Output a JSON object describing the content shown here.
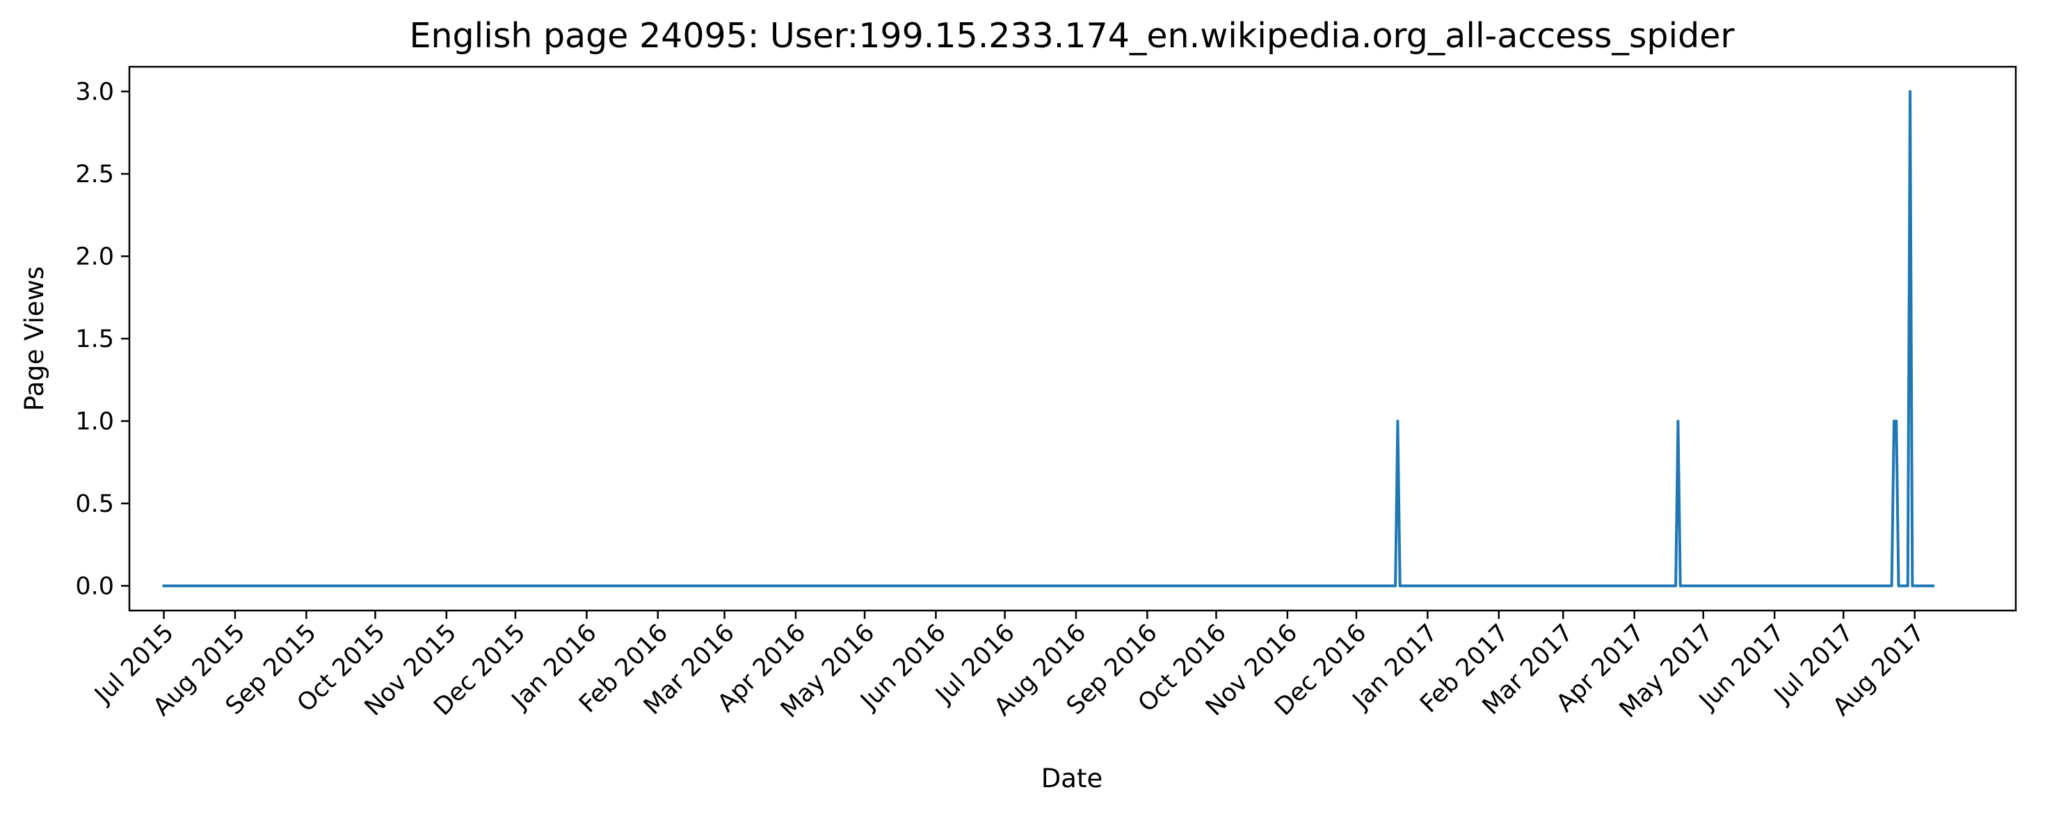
{
  "chart_data": {
    "type": "line",
    "title": "English page 24095: User:199.15.233.174_en.wikipedia.org_all-access_spider",
    "xlabel": "Date",
    "ylabel": "Page Views",
    "x_range": [
      "2015-06-16",
      "2017-09-14"
    ],
    "ylim": [
      -0.15,
      3.15
    ],
    "x_ticks": [
      {
        "date": "2015-07-01",
        "label": "Jul 2015"
      },
      {
        "date": "2015-08-01",
        "label": "Aug 2015"
      },
      {
        "date": "2015-09-01",
        "label": "Sep 2015"
      },
      {
        "date": "2015-10-01",
        "label": "Oct 2015"
      },
      {
        "date": "2015-11-01",
        "label": "Nov 2015"
      },
      {
        "date": "2015-12-01",
        "label": "Dec 2015"
      },
      {
        "date": "2016-01-01",
        "label": "Jan 2016"
      },
      {
        "date": "2016-02-01",
        "label": "Feb 2016"
      },
      {
        "date": "2016-03-01",
        "label": "Mar 2016"
      },
      {
        "date": "2016-04-01",
        "label": "Apr 2016"
      },
      {
        "date": "2016-05-01",
        "label": "May 2016"
      },
      {
        "date": "2016-06-01",
        "label": "Jun 2016"
      },
      {
        "date": "2016-07-01",
        "label": "Jul 2016"
      },
      {
        "date": "2016-08-01",
        "label": "Aug 2016"
      },
      {
        "date": "2016-09-01",
        "label": "Sep 2016"
      },
      {
        "date": "2016-10-01",
        "label": "Oct 2016"
      },
      {
        "date": "2016-11-01",
        "label": "Nov 2016"
      },
      {
        "date": "2016-12-01",
        "label": "Dec 2016"
      },
      {
        "date": "2017-01-01",
        "label": "Jan 2017"
      },
      {
        "date": "2017-02-01",
        "label": "Feb 2017"
      },
      {
        "date": "2017-03-01",
        "label": "Mar 2017"
      },
      {
        "date": "2017-04-01",
        "label": "Apr 2017"
      },
      {
        "date": "2017-05-01",
        "label": "May 2017"
      },
      {
        "date": "2017-06-01",
        "label": "Jun 2017"
      },
      {
        "date": "2017-07-01",
        "label": "Jul 2017"
      },
      {
        "date": "2017-08-01",
        "label": "Aug 2017"
      }
    ],
    "y_ticks": [
      {
        "value": 0.0,
        "label": "0.0"
      },
      {
        "value": 0.5,
        "label": "0.5"
      },
      {
        "value": 1.0,
        "label": "1.0"
      },
      {
        "value": 1.5,
        "label": "1.5"
      },
      {
        "value": 2.0,
        "label": "2.0"
      },
      {
        "value": 2.5,
        "label": "2.5"
      },
      {
        "value": 3.0,
        "label": "3.0"
      }
    ],
    "grid": false,
    "series": [
      {
        "color": "#1f77b4",
        "points": [
          {
            "x": "2015-07-01",
            "y": 0
          },
          {
            "x": "2016-12-18",
            "y": 0
          },
          {
            "x": "2016-12-19",
            "y": 1
          },
          {
            "x": "2016-12-20",
            "y": 0
          },
          {
            "x": "2017-04-19",
            "y": 0
          },
          {
            "x": "2017-04-20",
            "y": 1
          },
          {
            "x": "2017-04-21",
            "y": 0
          },
          {
            "x": "2017-07-22",
            "y": 0
          },
          {
            "x": "2017-07-23",
            "y": 1
          },
          {
            "x": "2017-07-24",
            "y": 1
          },
          {
            "x": "2017-07-25",
            "y": 0
          },
          {
            "x": "2017-07-29",
            "y": 0
          },
          {
            "x": "2017-07-30",
            "y": 3
          },
          {
            "x": "2017-07-31",
            "y": 0
          },
          {
            "x": "2017-08-09",
            "y": 0
          }
        ]
      }
    ]
  }
}
